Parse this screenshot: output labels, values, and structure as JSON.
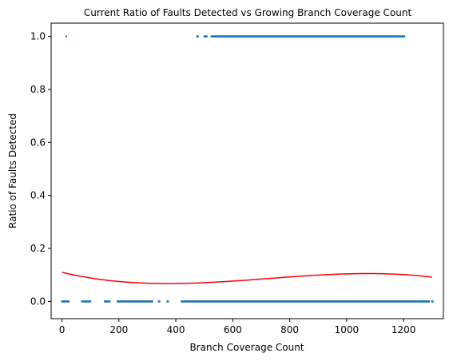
{
  "chart_data": {
    "type": "scatter",
    "title": "Current Ratio of Faults Detected vs Growing Branch Coverage Count",
    "xlabel": "Branch Coverage Count",
    "ylabel": "Ratio of Faults Detected",
    "xlim": [
      -38,
      1340
    ],
    "ylim": [
      -0.065,
      1.05
    ],
    "x_ticks": [
      0,
      200,
      400,
      600,
      800,
      1000,
      1200
    ],
    "x_tick_labels": [
      "0",
      "200",
      "400",
      "600",
      "800",
      "1000",
      "1200"
    ],
    "y_ticks": [
      0.0,
      0.2,
      0.4,
      0.6,
      0.8,
      1.0
    ],
    "y_tick_labels": [
      "0.0",
      "0.2",
      "0.4",
      "0.6",
      "0.8",
      "1.0"
    ],
    "grid": false,
    "colors": {
      "points": "#1f77b4",
      "trend": "#ff0000",
      "axes": "#000000"
    },
    "series": [
      {
        "kind": "points",
        "points_y0_segments": [
          [
            0,
            25
          ],
          [
            70,
            100
          ],
          [
            150,
            170
          ],
          [
            195,
            320
          ],
          [
            340,
            345
          ],
          [
            370,
            375
          ],
          [
            420,
            1290
          ],
          [
            1300,
            1305
          ]
        ],
        "points_y1_single": [
          15
        ],
        "points_y1_segments": [
          [
            475,
            480
          ],
          [
            500,
            510
          ],
          [
            525,
            1205
          ]
        ],
        "point_step": 3
      },
      {
        "kind": "trend_curve",
        "x_range": [
          0,
          1300
        ],
        "poly_coeffs_desc": [
          -2.15e-10,
          4.67e-07,
          -0.000258,
          0.11
        ]
      }
    ]
  }
}
